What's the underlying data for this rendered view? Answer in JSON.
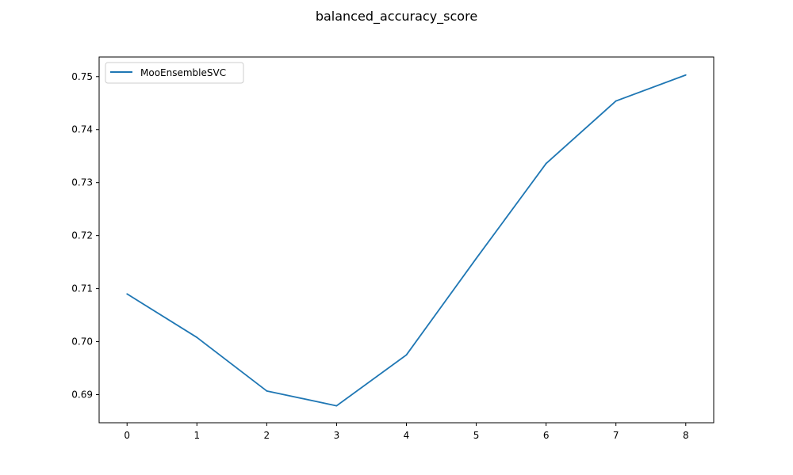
{
  "chart_data": {
    "type": "line",
    "title": "balanced_accuracy_score",
    "xlabel": "",
    "ylabel": "",
    "x": [
      0,
      1,
      2,
      3,
      4,
      5,
      6,
      7,
      8
    ],
    "xticks": [
      "0",
      "1",
      "2",
      "3",
      "4",
      "5",
      "6",
      "7",
      "8"
    ],
    "yticks": [
      "0.69",
      "0.70",
      "0.71",
      "0.72",
      "0.73",
      "0.74",
      "0.75"
    ],
    "ytick_values": [
      0.69,
      0.7,
      0.71,
      0.72,
      0.73,
      0.74,
      0.75
    ],
    "xlim": [
      -0.4,
      8.4
    ],
    "ylim": [
      0.6847,
      0.7537
    ],
    "grid": false,
    "legend": "upper-left",
    "series": [
      {
        "name": "MooEnsembleSVC",
        "color": "#1f77b4",
        "values": [
          0.709,
          0.7008,
          0.6907,
          0.6879,
          0.6975,
          0.7157,
          0.7336,
          0.7454,
          0.7503
        ]
      }
    ]
  }
}
